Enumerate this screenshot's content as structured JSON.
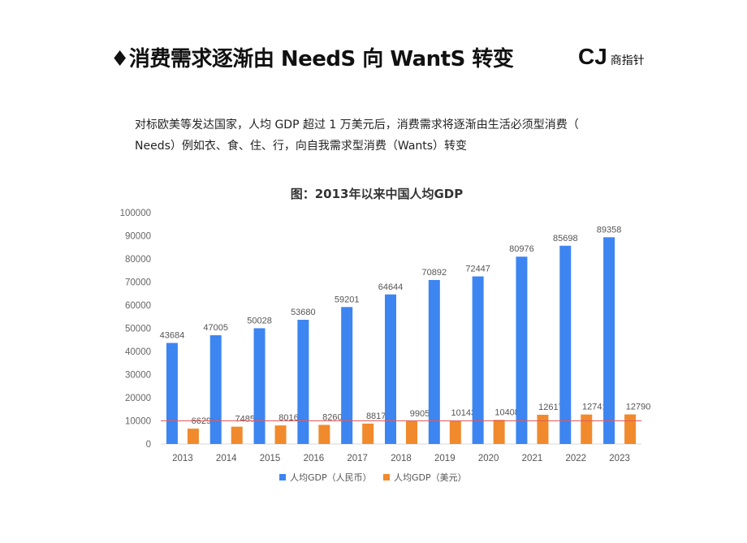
{
  "header": {
    "bullet": "♦",
    "title": "消费需求逐渐由 NeedS 向 WantS 转变",
    "brand_main": "CJ",
    "brand_sub": "商指针"
  },
  "intro": {
    "line1": "对标欧美等发达国家，人均 GDP 超过 1 万美元后，消费需求将逐渐由生活必须型消费（",
    "line2": "Needs）例如衣、食、住、行，向自我需求型消费（Wants）转变"
  },
  "chart_data": {
    "type": "bar",
    "title": "图：2013年以来中国人均GDP",
    "categories": [
      "2013",
      "2014",
      "2015",
      "2016",
      "2017",
      "2018",
      "2019",
      "2020",
      "2021",
      "2022",
      "2023"
    ],
    "series": [
      {
        "name": "人均GDP（人民币）",
        "color": "#3d85f0",
        "values": [
          43684,
          47005,
          50028,
          53680,
          59201,
          64644,
          70892,
          72447,
          80976,
          85698,
          89358
        ]
      },
      {
        "name": "人均GDP（美元）",
        "color": "#f08a2c",
        "values": [
          6629,
          7485,
          8016,
          8260,
          8817,
          9905,
          10143,
          10408,
          12617,
          12741,
          12790
        ]
      }
    ],
    "yticks": [
      0,
      10000,
      20000,
      30000,
      40000,
      50000,
      60000,
      70000,
      80000,
      90000,
      100000
    ],
    "ylim": [
      0,
      100000
    ],
    "reference_line": {
      "value": 10000,
      "color": "#e05a5a"
    },
    "grid": false,
    "legend": "bottom"
  }
}
